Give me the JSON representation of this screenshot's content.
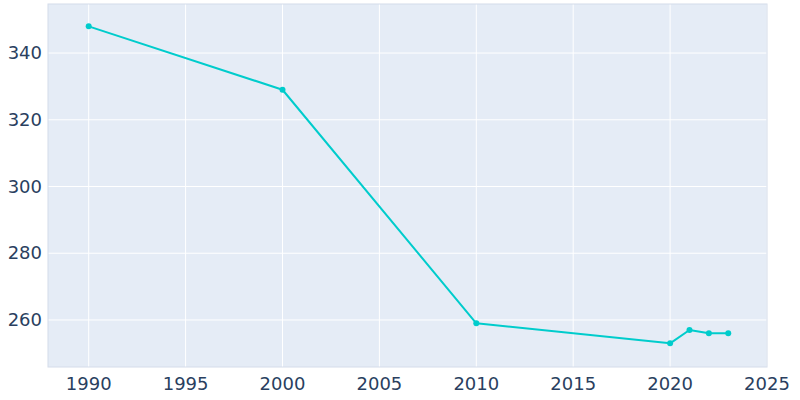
{
  "chart_data": {
    "type": "line",
    "x": [
      1990,
      2000,
      2010,
      2020,
      2021,
      2022,
      2023
    ],
    "values": [
      348,
      329,
      259,
      253,
      257,
      256,
      256
    ],
    "color": "#00cccc",
    "marker": "circle",
    "xlim": [
      1987.9,
      2025
    ],
    "xticks": [
      1990,
      1995,
      2000,
      2005,
      2010,
      2015,
      2020,
      2025
    ],
    "ylim": [
      245.9,
      354.7
    ],
    "yticks": [
      260,
      280,
      300,
      320,
      340
    ],
    "grid": true
  }
}
